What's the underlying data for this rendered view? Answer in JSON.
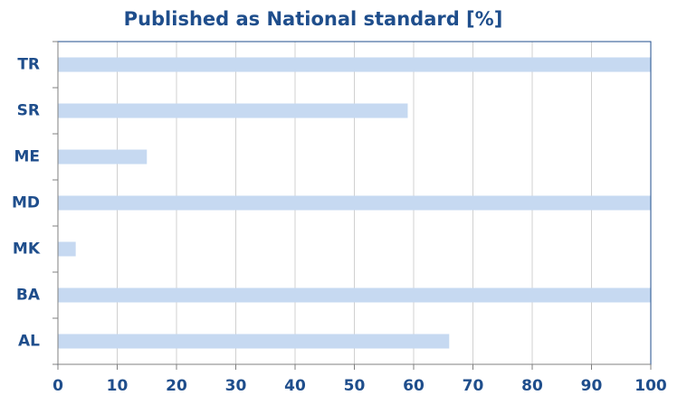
{
  "chart_data": {
    "type": "bar",
    "orientation": "horizontal",
    "title": "Published as National standard [%]",
    "categories": [
      "TR",
      "SR",
      "ME",
      "MD",
      "MK",
      "BA",
      "AL"
    ],
    "values": [
      100,
      59,
      15,
      100,
      3,
      100,
      66
    ],
    "color": "#c6d9f1",
    "xlim": [
      0,
      100
    ],
    "xticks": [
      0,
      10,
      20,
      30,
      40,
      50,
      60,
      70,
      80,
      90,
      100
    ],
    "grid": true
  }
}
